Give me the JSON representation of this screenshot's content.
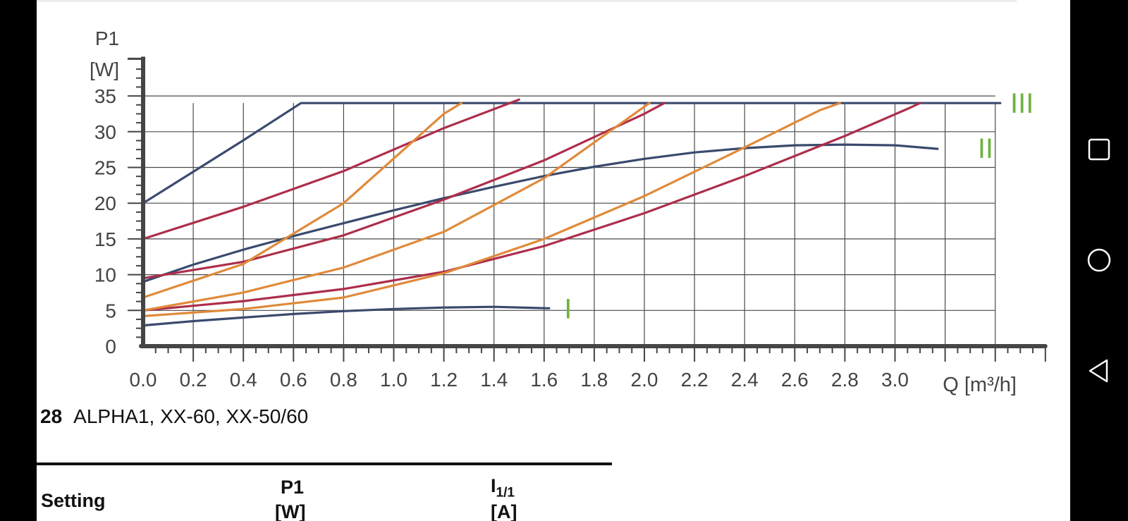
{
  "chart_data": {
    "type": "line",
    "xlabel": "Q [m³/h]",
    "ylabel_line1": "P1",
    "ylabel_line2": "[W]",
    "xlim": [
      0,
      3.6
    ],
    "ylim": [
      0,
      35
    ],
    "xticks": [
      "0.0",
      "0.2",
      "0.4",
      "0.6",
      "0.8",
      "1.0",
      "1.2",
      "1.4",
      "1.6",
      "1.8",
      "2.0",
      "2.2",
      "2.4",
      "2.6",
      "2.8",
      "3.0"
    ],
    "yticks": [
      "0",
      "5",
      "10",
      "15",
      "20",
      "25",
      "30",
      "35"
    ],
    "grid": true,
    "colors": {
      "axis": "#454545",
      "grid": "#4a4a4a",
      "blue": "#3a4a6e",
      "red": "#ad2e4b",
      "orange": "#e08a3a",
      "label": "#6db33f"
    },
    "curve_labels": [
      {
        "text": "I",
        "x": 1.68,
        "y": 5.3
      },
      {
        "text": "II",
        "x": 3.33,
        "y": 27.7
      },
      {
        "text": "III",
        "x": 3.46,
        "y": 34.0
      }
    ],
    "series": [
      {
        "color": "blue",
        "points": [
          [
            0,
            2.9
          ],
          [
            0.2,
            3.5
          ],
          [
            0.4,
            4.0
          ],
          [
            0.6,
            4.5
          ],
          [
            0.8,
            4.9
          ],
          [
            1.0,
            5.2
          ],
          [
            1.2,
            5.4
          ],
          [
            1.4,
            5.5
          ],
          [
            1.62,
            5.3
          ]
        ]
      },
      {
        "color": "blue",
        "points": [
          [
            0,
            9.0
          ],
          [
            0.2,
            11.4
          ],
          [
            0.4,
            13.5
          ],
          [
            0.6,
            15.4
          ],
          [
            0.8,
            17.2
          ],
          [
            1.0,
            19.0
          ],
          [
            1.2,
            20.7
          ],
          [
            1.4,
            22.3
          ],
          [
            1.6,
            23.8
          ],
          [
            1.8,
            25.1
          ],
          [
            2.0,
            26.2
          ],
          [
            2.2,
            27.1
          ],
          [
            2.4,
            27.7
          ],
          [
            2.6,
            28.1
          ],
          [
            2.8,
            28.2
          ],
          [
            3.0,
            28.1
          ],
          [
            3.17,
            27.6
          ]
        ]
      },
      {
        "color": "blue",
        "points": [
          [
            0,
            20.0
          ],
          [
            0.2,
            24.4
          ],
          [
            0.4,
            28.8
          ],
          [
            0.63,
            34.0
          ],
          [
            3.42,
            34.0
          ]
        ]
      },
      {
        "color": "red",
        "points": [
          [
            0,
            5.0
          ],
          [
            0.4,
            6.3
          ],
          [
            0.8,
            8.0
          ],
          [
            1.2,
            10.4
          ],
          [
            1.6,
            14.0
          ],
          [
            2.0,
            18.6
          ],
          [
            2.4,
            23.8
          ],
          [
            2.8,
            29.4
          ],
          [
            3.05,
            33.2
          ],
          [
            3.1,
            34.0
          ]
        ]
      },
      {
        "color": "red",
        "points": [
          [
            0,
            9.5
          ],
          [
            0.4,
            11.8
          ],
          [
            0.8,
            15.5
          ],
          [
            1.2,
            20.5
          ],
          [
            1.6,
            26.0
          ],
          [
            2.0,
            32.5
          ],
          [
            2.08,
            34.0
          ]
        ]
      },
      {
        "color": "red",
        "points": [
          [
            0,
            15.0
          ],
          [
            0.4,
            19.5
          ],
          [
            0.8,
            24.5
          ],
          [
            1.2,
            30.5
          ],
          [
            1.5,
            34.5
          ]
        ]
      },
      {
        "color": "orange",
        "points": [
          [
            0,
            4.2
          ],
          [
            0.4,
            5.2
          ],
          [
            0.8,
            6.8
          ],
          [
            1.2,
            10.2
          ],
          [
            1.6,
            15.0
          ],
          [
            2.0,
            21.0
          ],
          [
            2.4,
            27.8
          ],
          [
            2.7,
            33.0
          ],
          [
            2.78,
            34.0
          ]
        ]
      },
      {
        "color": "orange",
        "points": [
          [
            0,
            5.0
          ],
          [
            0.4,
            7.5
          ],
          [
            0.8,
            11.0
          ],
          [
            1.2,
            16.0
          ],
          [
            1.6,
            23.5
          ],
          [
            2.0,
            33.5
          ],
          [
            2.02,
            34.0
          ]
        ]
      },
      {
        "color": "orange",
        "points": [
          [
            0,
            6.8
          ],
          [
            0.4,
            11.5
          ],
          [
            0.8,
            20.0
          ],
          [
            1.2,
            32.5
          ],
          [
            1.27,
            34.0
          ]
        ]
      }
    ]
  },
  "caption": {
    "number": "28",
    "text": "ALPHA1, XX-60, XX-50/60"
  },
  "table_header": {
    "setting": "Setting",
    "p1": "P1",
    "p1_unit": "[W]",
    "i_main": "I",
    "i_sub": "1/1",
    "i_unit": "[A]"
  },
  "navbar": {
    "icons": [
      "square-recents-icon",
      "circle-home-icon",
      "triangle-back-icon"
    ]
  }
}
